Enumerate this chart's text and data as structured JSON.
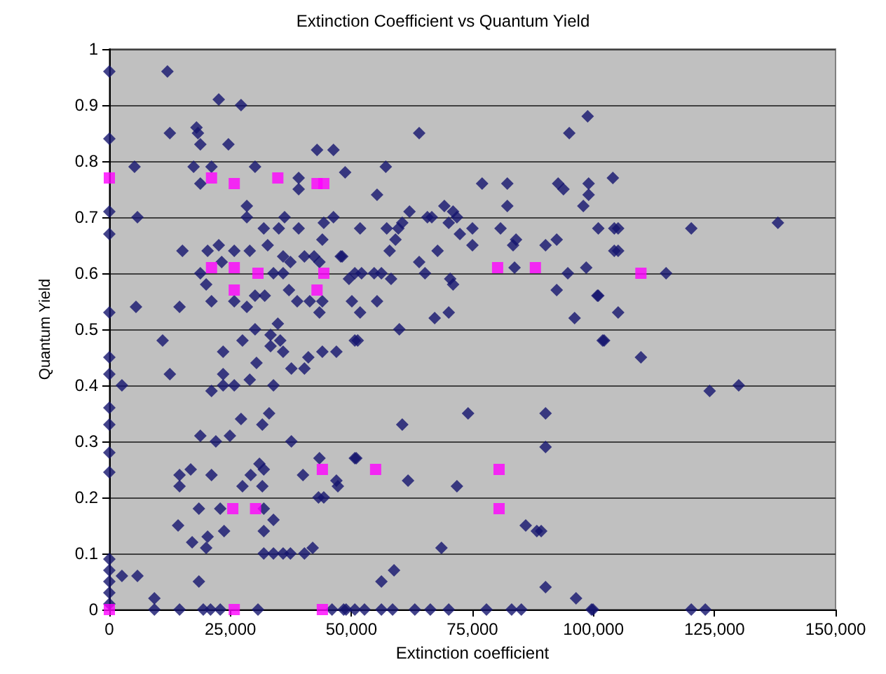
{
  "chart_data": {
    "type": "scatter",
    "title": "Extinction Coefficient vs Quantum Yield",
    "xlabel": "Extinction coefficient",
    "ylabel": "Quantum Yield",
    "xlim": [
      0,
      150000
    ],
    "xticks": [
      0,
      {
        "value": 25000,
        "label": "25,000"
      },
      {
        "value": 50000,
        "label": "50,000"
      },
      {
        "value": 75000,
        "label": "75,000"
      },
      {
        "value": 100000,
        "label": "100,000"
      },
      {
        "value": 125000,
        "label": "125,000"
      },
      {
        "value": 150000,
        "label": "150,000"
      }
    ],
    "ylim": [
      0,
      1
    ],
    "yticks": [
      0,
      0.1,
      0.2,
      0.3,
      0.4,
      0.5,
      0.6,
      0.7,
      0.8,
      0.9,
      1
    ],
    "grid": "y",
    "series": [
      {
        "color": "#14146e",
        "marker": "diamond",
        "x": [
          0,
          0,
          0,
          0,
          0,
          0,
          0,
          0,
          0,
          0,
          0,
          0,
          0,
          0,
          0,
          0,
          12000,
          22600,
          27200,
          12500,
          18000,
          18300,
          18800,
          24600,
          42900,
          46300,
          5200,
          17400,
          21100,
          30100,
          48700,
          18800,
          39100,
          39100,
          5800,
          28400,
          28400,
          36200,
          31900,
          35000,
          39100,
          44300,
          46300,
          51800,
          44000,
          15100,
          20300,
          22600,
          25800,
          29000,
          32700,
          35900,
          37400,
          40300,
          42300,
          43400,
          47800,
          23200,
          18800,
          50700,
          33900,
          35900,
          20000,
          49500,
          37100,
          50100,
          30100,
          32100,
          38800,
          41400,
          21100,
          25800,
          28400,
          43400,
          44000,
          5500,
          14500,
          30100,
          34800,
          35300,
          11000,
          27500,
          33300,
          51300,
          98800,
          95000,
          64000,
          57100,
          77000,
          82200,
          92700,
          93800,
          99000,
          99000,
          104000,
          55300,
          82200,
          97900,
          69200,
          62000,
          65700,
          66600,
          71000,
          71800,
          70100,
          60500,
          59700,
          57300,
          75000,
          80800,
          101000,
          104300,
          72400,
          59100,
          67800,
          75000,
          84000,
          83400,
          90100,
          92400,
          104300,
          48100,
          57900,
          64000,
          65200,
          52100,
          54700,
          56200,
          58200,
          70400,
          71000,
          83700,
          94700,
          98500,
          92400,
          101000,
          55300,
          51800,
          67200,
          70100,
          96100,
          59900,
          50700,
          101900,
          105100,
          120200,
          138100,
          105100,
          115000,
          100800,
          105100,
          102200,
          109800,
          124000,
          130000,
          99900,
          120200,
          123100,
          46900,
          74100,
          90100,
          60500,
          90100,
          50700,
          46900,
          61700,
          71800,
          86000,
          88300,
          89200,
          68600,
          58800,
          56200,
          90100,
          96400,
          99600,
          48400,
          52700,
          56200,
          58500,
          63100,
          66300,
          70100,
          77900,
          83100,
          85100,
          33300,
          35900,
          2600,
          12500,
          23500,
          23500,
          23500,
          25800,
          21100,
          30400,
          29000,
          33900,
          37600,
          40300,
          41100,
          44000,
          27200,
          33000,
          31600,
          18800,
          22000,
          24900,
          37600,
          14500,
          16800,
          14500,
          21100,
          31000,
          31900,
          29200,
          27500,
          31600,
          40000,
          43400,
          47200,
          51000,
          43200,
          44300,
          18500,
          22900,
          31900,
          14200,
          33900,
          17100,
          20300,
          23700,
          20000,
          31900,
          31900,
          33900,
          35900,
          37400,
          40300,
          42000,
          5800,
          2600,
          18500,
          9300,
          9300,
          14500,
          19400,
          20900,
          22900,
          30700,
          46000,
          48900,
          50700
        ],
        "values": [
          0.96,
          0.84,
          0.71,
          0.67,
          0.53,
          0.45,
          0.42,
          0.36,
          0.33,
          0.28,
          0.245,
          0.09,
          0.07,
          0.05,
          0.03,
          0.01,
          0.96,
          0.91,
          0.9,
          0.85,
          0.86,
          0.85,
          0.83,
          0.83,
          0.82,
          0.82,
          0.79,
          0.79,
          0.79,
          0.79,
          0.78,
          0.76,
          0.77,
          0.75,
          0.7,
          0.72,
          0.7,
          0.7,
          0.68,
          0.68,
          0.68,
          0.69,
          0.7,
          0.68,
          0.66,
          0.64,
          0.64,
          0.65,
          0.64,
          0.64,
          0.65,
          0.63,
          0.62,
          0.63,
          0.63,
          0.62,
          0.63,
          0.62,
          0.6,
          0.6,
          0.6,
          0.6,
          0.58,
          0.59,
          0.57,
          0.55,
          0.56,
          0.56,
          0.55,
          0.55,
          0.55,
          0.55,
          0.54,
          0.53,
          0.55,
          0.54,
          0.54,
          0.5,
          0.51,
          0.48,
          0.48,
          0.48,
          0.49,
          0.48,
          0.88,
          0.85,
          0.85,
          0.79,
          0.76,
          0.76,
          0.76,
          0.75,
          0.76,
          0.74,
          0.77,
          0.74,
          0.72,
          0.72,
          0.72,
          0.71,
          0.7,
          0.7,
          0.71,
          0.7,
          0.69,
          0.69,
          0.68,
          0.68,
          0.68,
          0.68,
          0.68,
          0.68,
          0.67,
          0.66,
          0.64,
          0.65,
          0.66,
          0.65,
          0.65,
          0.66,
          0.64,
          0.63,
          0.64,
          0.62,
          0.6,
          0.6,
          0.6,
          0.6,
          0.59,
          0.59,
          0.58,
          0.61,
          0.6,
          0.61,
          0.57,
          0.56,
          0.55,
          0.53,
          0.52,
          0.53,
          0.52,
          0.5,
          0.48,
          0.48,
          0.68,
          0.68,
          0.69,
          0.64,
          0.6,
          0.56,
          0.53,
          0.48,
          0.45,
          0.39,
          0.4,
          0,
          0,
          0,
          0.46,
          0.35,
          0.35,
          0.33,
          0.29,
          0.27,
          0.23,
          0.23,
          0.22,
          0.15,
          0.14,
          0.14,
          0.11,
          0.07,
          0.05,
          0.04,
          0.02,
          0,
          0,
          0,
          0,
          0,
          0,
          0,
          0,
          0,
          0,
          0,
          0.47,
          0.46,
          0.4,
          0.42,
          0.46,
          0.42,
          0.4,
          0.4,
          0.39,
          0.44,
          0.41,
          0.4,
          0.43,
          0.43,
          0.45,
          0.46,
          0.34,
          0.35,
          0.33,
          0.31,
          0.3,
          0.31,
          0.3,
          0.24,
          0.25,
          0.22,
          0.24,
          0.26,
          0.25,
          0.24,
          0.22,
          0.22,
          0.24,
          0.27,
          0.22,
          0.27,
          0.2,
          0.2,
          0.18,
          0.18,
          0.18,
          0.15,
          0.16,
          0.12,
          0.13,
          0.14,
          0.11,
          0.14,
          0.1,
          0.1,
          0.1,
          0.1,
          0.1,
          0.11,
          0.06,
          0.06,
          0.05,
          0.02,
          0,
          0,
          0,
          0,
          0,
          0,
          0,
          0,
          0
        ]
      },
      {
        "color": "#ff00ff",
        "marker": "square",
        "x": [
          0,
          21100,
          25800,
          34800,
          42900,
          44300,
          21100,
          25800,
          30700,
          44300,
          25800,
          42900,
          80200,
          88000,
          109800,
          55000,
          80500,
          80500,
          25500,
          30200,
          44000,
          0,
          25800,
          44000
        ],
        "values": [
          0.77,
          0.77,
          0.76,
          0.77,
          0.76,
          0.76,
          0.61,
          0.61,
          0.6,
          0.6,
          0.57,
          0.57,
          0.61,
          0.61,
          0.6,
          0.25,
          0.25,
          0.18,
          0.18,
          0.18,
          0.25,
          0,
          0,
          0
        ]
      }
    ]
  }
}
